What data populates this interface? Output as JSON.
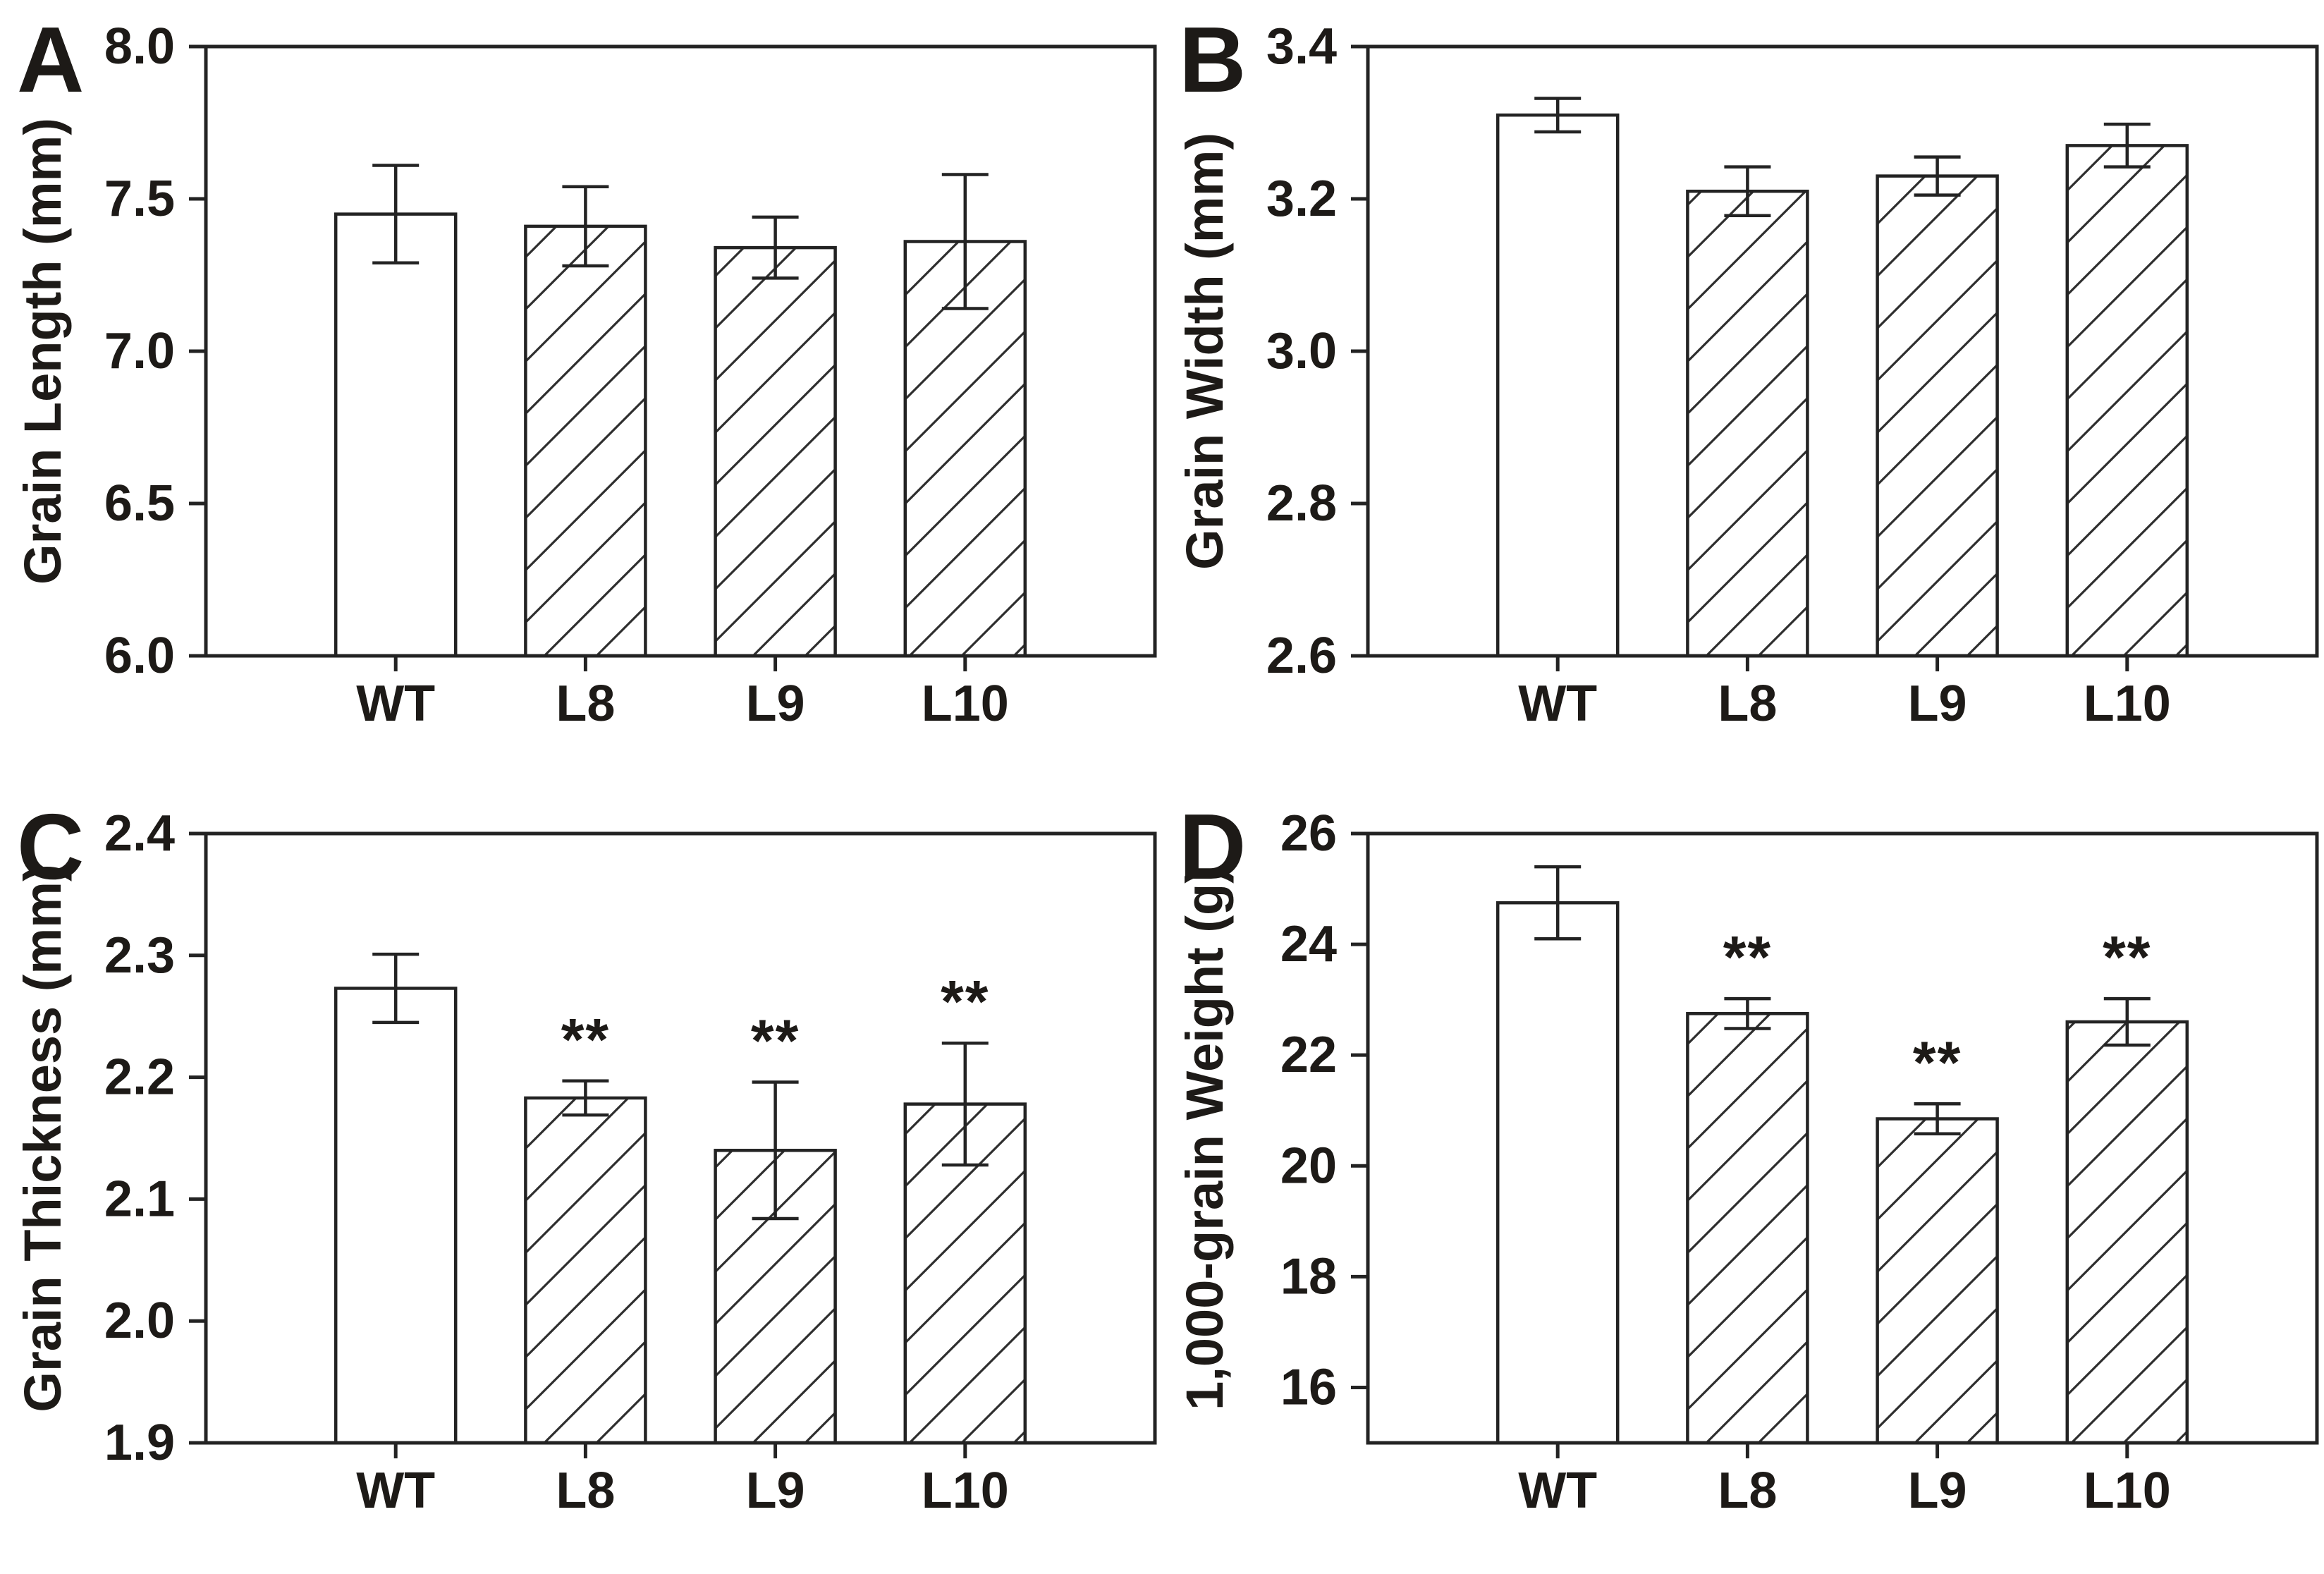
{
  "figure": {
    "background": "#ffffff",
    "ink": "#1d1a17",
    "axis_color": "#232323",
    "bar_fill": "#ffffff",
    "hatch_color": "#2e2e2e"
  },
  "chart_data": [
    {
      "panel": "A",
      "type": "bar",
      "title": "",
      "xlabel": "",
      "ylabel": "Grain Length (mm)",
      "categories": [
        "WT",
        "L8",
        "L9",
        "L10"
      ],
      "values": [
        7.45,
        7.41,
        7.34,
        7.36
      ],
      "errors": [
        0.16,
        0.13,
        0.1,
        0.22
      ],
      "significance": [
        "",
        "",
        "",
        ""
      ],
      "hatched": [
        false,
        true,
        true,
        true
      ],
      "ylim": [
        6.0,
        8.0
      ],
      "yticks": [
        {
          "value": 6.0,
          "label": "6.0"
        },
        {
          "value": 6.5,
          "label": "6.5"
        },
        {
          "value": 7.0,
          "label": "7.0"
        },
        {
          "value": 7.5,
          "label": "7.5"
        },
        {
          "value": 8.0,
          "label": "8.0"
        }
      ],
      "grid": false,
      "legend": "none"
    },
    {
      "panel": "B",
      "type": "bar",
      "title": "",
      "xlabel": "",
      "ylabel": "Grain Width (mm)",
      "categories": [
        "WT",
        "L8",
        "L9",
        "L10"
      ],
      "values": [
        3.31,
        3.21,
        3.23,
        3.27
      ],
      "errors": [
        0.022,
        0.032,
        0.025,
        0.028
      ],
      "significance": [
        "",
        "",
        "",
        ""
      ],
      "hatched": [
        false,
        true,
        true,
        true
      ],
      "ylim": [
        2.6,
        3.4
      ],
      "yticks": [
        {
          "value": 2.6,
          "label": "2.6"
        },
        {
          "value": 2.8,
          "label": "2.8"
        },
        {
          "value": 3.0,
          "label": "3.0"
        },
        {
          "value": 3.2,
          "label": "3.2"
        },
        {
          "value": 3.4,
          "label": "3.4"
        }
      ],
      "grid": false,
      "legend": "none"
    },
    {
      "panel": "C",
      "type": "bar",
      "title": "",
      "xlabel": "",
      "ylabel": "Grain Thickness (mm)",
      "categories": [
        "WT",
        "L8",
        "L9",
        "L10"
      ],
      "values": [
        2.273,
        2.183,
        2.14,
        2.178
      ],
      "errors": [
        0.028,
        0.014,
        0.056,
        0.05
      ],
      "significance": [
        "",
        "**",
        "**",
        "**"
      ],
      "hatched": [
        false,
        true,
        true,
        true
      ],
      "ylim": [
        1.9,
        2.4
      ],
      "yticks": [
        {
          "value": 1.9,
          "label": "1.9"
        },
        {
          "value": 2.0,
          "label": "2.0"
        },
        {
          "value": 2.1,
          "label": "2.1"
        },
        {
          "value": 2.2,
          "label": "2.2"
        },
        {
          "value": 2.3,
          "label": "2.3"
        },
        {
          "value": 2.4,
          "label": "2.4"
        }
      ],
      "grid": false,
      "legend": "none"
    },
    {
      "panel": "D",
      "type": "bar",
      "title": "",
      "xlabel": "",
      "ylabel": "1,000-grain Weight (g)",
      "categories": [
        "WT",
        "L8",
        "L9",
        "L10"
      ],
      "values": [
        24.75,
        22.75,
        20.85,
        22.6
      ],
      "errors": [
        0.65,
        0.27,
        0.27,
        0.42
      ],
      "significance": [
        "",
        "**",
        "**",
        "**"
      ],
      "hatched": [
        false,
        true,
        true,
        true
      ],
      "ylim": [
        15,
        26
      ],
      "yticks": [
        {
          "value": 16,
          "label": "16"
        },
        {
          "value": 18,
          "label": "18"
        },
        {
          "value": 20,
          "label": "20"
        },
        {
          "value": 22,
          "label": "22"
        },
        {
          "value": 24,
          "label": "24"
        },
        {
          "value": 26,
          "label": "26"
        }
      ],
      "grid": false,
      "legend": "none"
    }
  ]
}
